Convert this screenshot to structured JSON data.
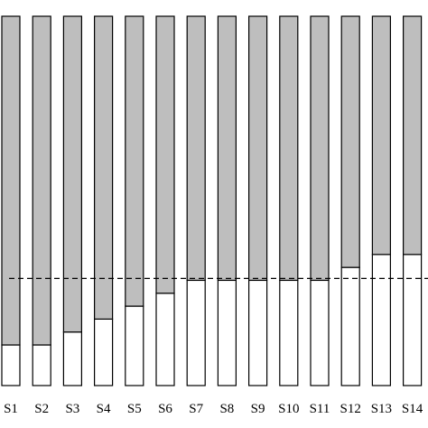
{
  "chart_data": {
    "type": "bar",
    "stacked": true,
    "title": "",
    "xlabel": "",
    "ylabel": "",
    "ylim": [
      0,
      1
    ],
    "grid": false,
    "categories": [
      "S1",
      "S2",
      "S3",
      "S4",
      "S5",
      "S6",
      "S7",
      "S8",
      "S9",
      "S10",
      "S11",
      "S12",
      "S13",
      "S14"
    ],
    "series": [
      {
        "values": [
          0.11,
          0.11,
          0.145,
          0.18,
          0.215,
          0.25,
          0.285,
          0.285,
          0.285,
          0.285,
          0.285,
          0.32,
          0.355,
          0.355
        ],
        "color": "#ffffff"
      },
      {
        "values": [
          0.89,
          0.89,
          0.855,
          0.82,
          0.785,
          0.75,
          0.715,
          0.715,
          0.715,
          0.715,
          0.715,
          0.68,
          0.645,
          0.645
        ],
        "color": "#bebebe"
      }
    ],
    "reference_line": {
      "value": 0.29,
      "style": "dashed",
      "color": "#000000"
    }
  }
}
